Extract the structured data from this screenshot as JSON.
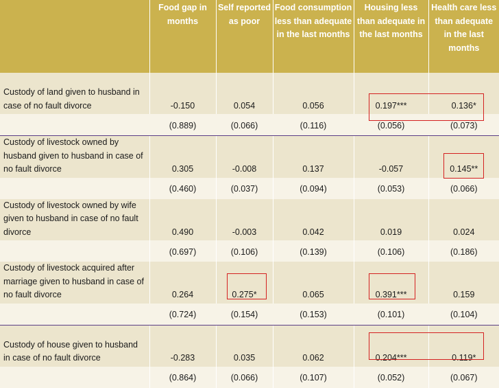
{
  "headers": [
    "",
    "Food gap in months",
    "Self reported as poor",
    "Food consumption less than adequate in the last months",
    "Housing less than adequate in the last months",
    "Health care less than adequate in the last months"
  ],
  "rows": [
    {
      "label": "Custody of land given to husband in case of no fault divorce",
      "coef": [
        "-0.150",
        "0.054",
        "0.056",
        "0.197***",
        "0.136*"
      ],
      "se": [
        "(0.889)",
        "(0.066)",
        "(0.116)",
        "(0.056)",
        "(0.073)"
      ]
    },
    {
      "label": "Custody of livestock owned by husband given to husband in case of no fault divorce",
      "coef": [
        "0.305",
        "-0.008",
        "0.137",
        "-0.057",
        "0.145**"
      ],
      "se": [
        "(0.460)",
        "(0.037)",
        "(0.094)",
        "(0.053)",
        "(0.066)"
      ]
    },
    {
      "label": "Custody of livestock owned by wife given to husband in case of no fault divorce",
      "coef": [
        "0.490",
        "-0.003",
        "0.042",
        "0.019",
        "0.024"
      ],
      "se": [
        "(0.697)",
        "(0.106)",
        "(0.139)",
        "(0.106)",
        "(0.186)"
      ]
    },
    {
      "label": "Custody of livestock acquired after marriage given to husband in case of no fault divorce",
      "coef": [
        "0.264",
        "0.275*",
        "0.065",
        "0.391***",
        "0.159"
      ],
      "se": [
        "(0.724)",
        "(0.154)",
        "(0.153)",
        "(0.101)",
        "(0.104)"
      ]
    },
    {
      "label": "Custody of house given to husband in case of no fault divorce",
      "coef": [
        "-0.283",
        "0.035",
        "0.062",
        "0.204***",
        "0.119*"
      ],
      "se": [
        "(0.864)",
        "(0.066)",
        "(0.107)",
        "(0.052)",
        "(0.067)"
      ]
    }
  ],
  "highlight_color": "#d42020",
  "header_color": "#cbb24e",
  "separator_color": "#5a3d86"
}
